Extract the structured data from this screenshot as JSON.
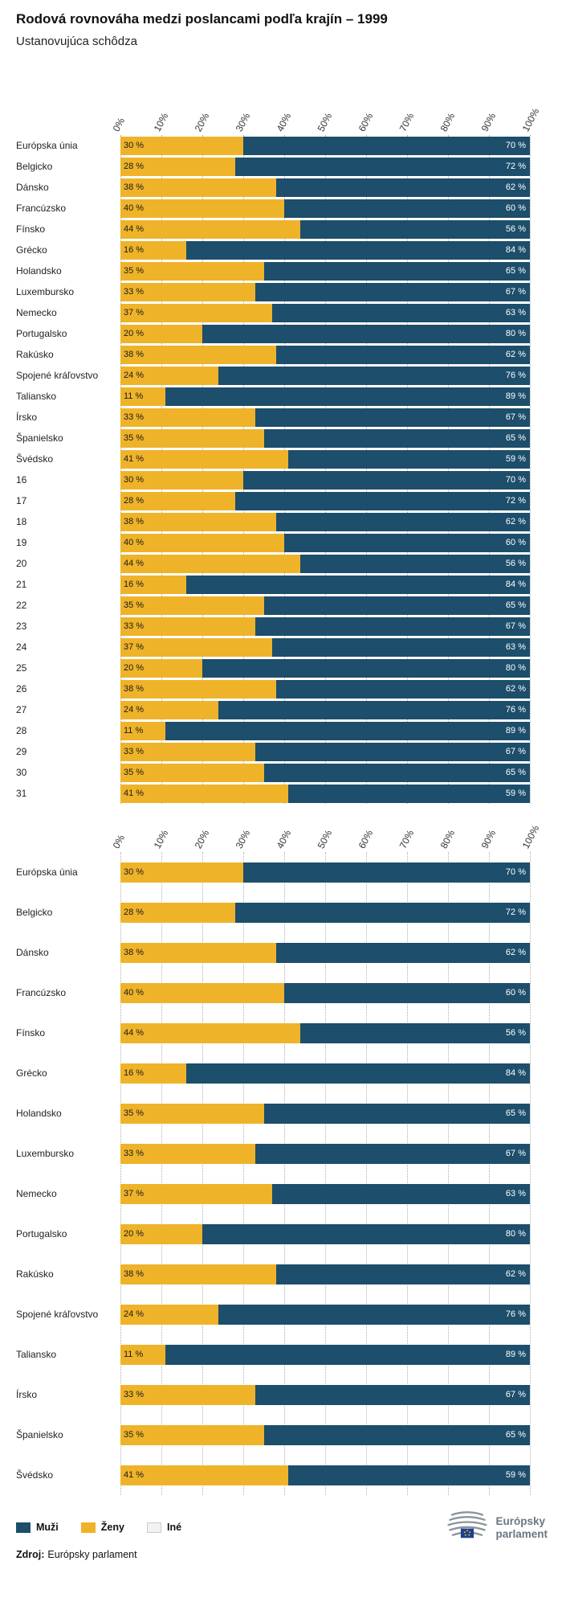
{
  "title": "Rodová rovnováha medzi poslancami podľa krajín – 1999",
  "subtitle": "Ustanovujúca schôdza",
  "legend": [
    {
      "label": "Muži",
      "color": "#1d4e6b"
    },
    {
      "label": "Ženy",
      "color": "#efb32a"
    },
    {
      "label": "Iné",
      "color": "#f2f2f2",
      "border": "#cccccc"
    }
  ],
  "source": {
    "label": "Zdroj:",
    "value": "Európsky parlament"
  },
  "logo": {
    "line1": "Európsky",
    "line2": "parlament"
  },
  "chart_data": [
    {
      "type": "bar",
      "name": "all-rows",
      "orientation": "horizontal_stacked_100",
      "xlim": [
        0,
        100
      ],
      "grid": true,
      "legend_position": "bottom",
      "x_ticks": [
        "0%",
        "10%",
        "20%",
        "30%",
        "40%",
        "50%",
        "60%",
        "70%",
        "80%",
        "90%",
        "100%"
      ],
      "categories": [
        "Európska únia",
        "Belgicko",
        "Dánsko",
        "Francúzsko",
        "Fínsko",
        "Grécko",
        "Holandsko",
        "Luxembursko",
        "Nemecko",
        "Portugalsko",
        "Rakúsko",
        "Spojené kráľovstvo",
        "Taliansko",
        "Írsko",
        "Španielsko",
        "Švédsko",
        "16",
        "17",
        "18",
        "19",
        "20",
        "21",
        "22",
        "23",
        "24",
        "25",
        "26",
        "27",
        "28",
        "29",
        "30",
        "31"
      ],
      "series": [
        {
          "name": "Ženy",
          "color": "#efb32a",
          "values": [
            30,
            28,
            38,
            40,
            44,
            16,
            35,
            33,
            37,
            20,
            38,
            24,
            11,
            33,
            35,
            41,
            30,
            28,
            38,
            40,
            44,
            16,
            35,
            33,
            37,
            20,
            38,
            24,
            11,
            33,
            35,
            41
          ]
        },
        {
          "name": "Muži",
          "color": "#1d4e6b",
          "values": [
            70,
            72,
            62,
            60,
            56,
            84,
            65,
            67,
            63,
            80,
            62,
            76,
            89,
            67,
            65,
            59,
            70,
            72,
            62,
            60,
            56,
            84,
            65,
            67,
            63,
            80,
            62,
            76,
            89,
            67,
            65,
            59
          ]
        }
      ],
      "value_label_format": "{v} %"
    },
    {
      "type": "bar",
      "name": "countries",
      "orientation": "horizontal_stacked_100",
      "xlim": [
        0,
        100
      ],
      "grid": true,
      "legend_position": "bottom",
      "x_ticks": [
        "0%",
        "10%",
        "20%",
        "30%",
        "40%",
        "50%",
        "60%",
        "70%",
        "80%",
        "90%",
        "100%"
      ],
      "categories": [
        "Európska únia",
        "Belgicko",
        "Dánsko",
        "Francúzsko",
        "Fínsko",
        "Grécko",
        "Holandsko",
        "Luxembursko",
        "Nemecko",
        "Portugalsko",
        "Rakúsko",
        "Spojené kráľovstvo",
        "Taliansko",
        "Írsko",
        "Španielsko",
        "Švédsko"
      ],
      "series": [
        {
          "name": "Ženy",
          "color": "#efb32a",
          "values": [
            30,
            28,
            38,
            40,
            44,
            16,
            35,
            33,
            37,
            20,
            38,
            24,
            11,
            33,
            35,
            41
          ]
        },
        {
          "name": "Muži",
          "color": "#1d4e6b",
          "values": [
            70,
            72,
            62,
            60,
            56,
            84,
            65,
            67,
            63,
            80,
            62,
            76,
            89,
            67,
            65,
            59
          ]
        }
      ],
      "value_label_format": "{v} %"
    }
  ]
}
